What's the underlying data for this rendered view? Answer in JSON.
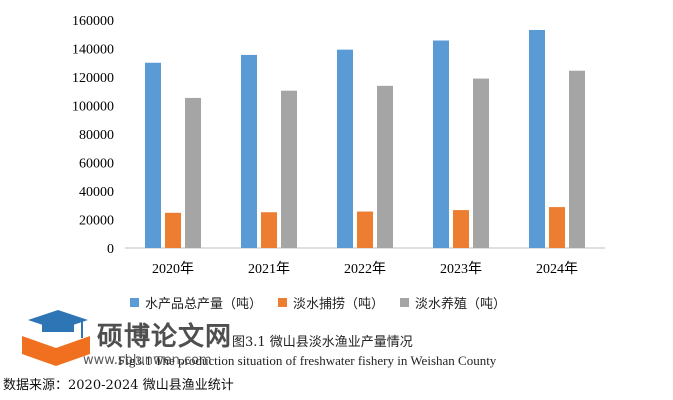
{
  "chart_data": {
    "type": "bar",
    "categories": [
      "2020年",
      "2021年",
      "2022年",
      "2023年",
      "2024年"
    ],
    "series": [
      {
        "name": "水产品总产量（吨）",
        "values": [
          130000,
          135500,
          139200,
          145600,
          153000
        ],
        "color": "#5B9BD5"
      },
      {
        "name": "淡水捕捞（吨）",
        "values": [
          24700,
          25100,
          25600,
          26600,
          28700
        ],
        "color": "#ED7D31"
      },
      {
        "name": "淡水养殖（吨）",
        "values": [
          105300,
          110400,
          113800,
          118900,
          124400
        ],
        "color": "#A5A5A5"
      }
    ],
    "yticks": [
      0,
      20000,
      40000,
      60000,
      80000,
      100000,
      120000,
      140000,
      160000
    ],
    "ylim": [
      0,
      160000
    ],
    "grid": false,
    "legend": "bottom"
  },
  "caption": {
    "zh": "图3.1  微山县淡水渔业产量情况",
    "en": "Fig3.1 The production situation of freshwater fishery in Weishan County"
  },
  "source": "数据来源：2020-2024 微山县渔业统计",
  "watermark": {
    "text": "硕博论文网",
    "url": "www.sblunwen.com",
    "colors": {
      "cap": "#2E75B6",
      "book": "#F07020"
    }
  }
}
